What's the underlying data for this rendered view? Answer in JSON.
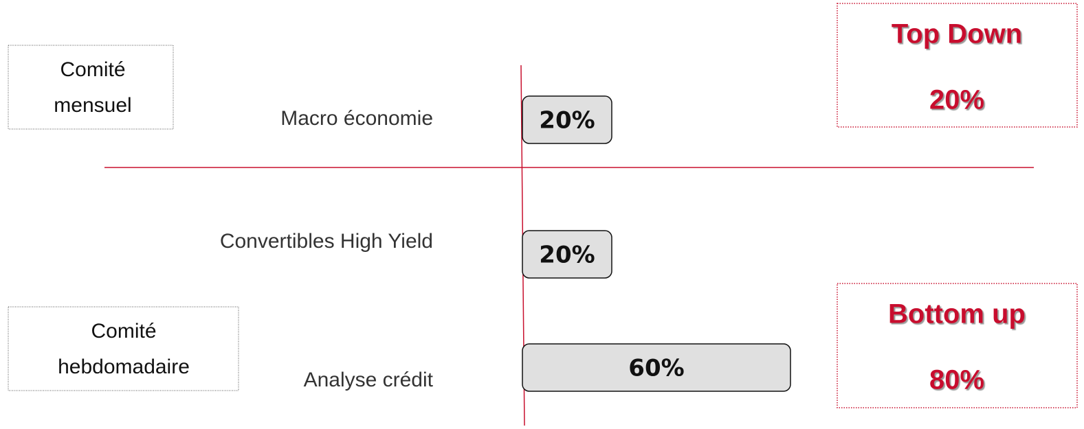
{
  "committees": [
    {
      "lines": [
        "Comité",
        "mensuel"
      ]
    },
    {
      "lines": [
        "Comité",
        "hebdomadaire"
      ]
    }
  ],
  "approaches": [
    {
      "title": "Top Down",
      "share": "20%"
    },
    {
      "title": "Bottom up",
      "share": "80%"
    }
  ],
  "allocation": {
    "categories": [
      "Macro économie",
      "Convertibles High Yield",
      "Analyse crédit"
    ],
    "values": [
      20,
      20,
      60
    ],
    "value_labels": [
      "20%",
      "20%",
      "60%"
    ],
    "color": "#e0e0e0"
  }
}
